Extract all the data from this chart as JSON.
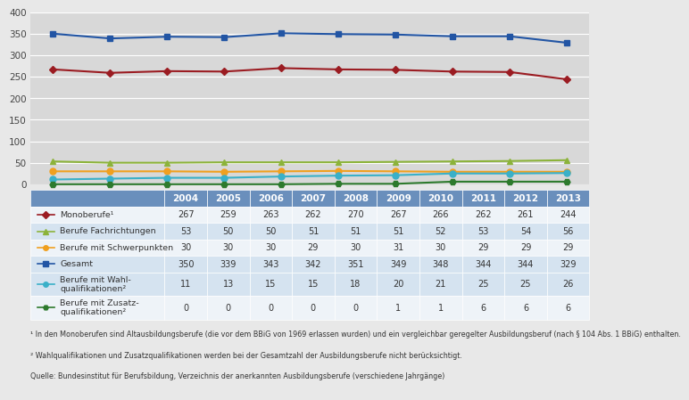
{
  "years": [
    2004,
    2005,
    2006,
    2007,
    2008,
    2009,
    2010,
    2011,
    2012,
    2013
  ],
  "series": [
    {
      "label": "Monoberufe¹",
      "label_short": "Monoberufe¹",
      "values": [
        267,
        259,
        263,
        262,
        270,
        267,
        266,
        262,
        261,
        244
      ],
      "color": "#9b1c22",
      "marker": "D",
      "markersize": 4,
      "linewidth": 1.5
    },
    {
      "label": "Berufe Fachrichtungen",
      "label_short": "Berufe Fachrichtungen",
      "values": [
        53,
        50,
        50,
        51,
        51,
        51,
        52,
        53,
        54,
        56
      ],
      "color": "#8cb33a",
      "marker": "^",
      "markersize": 5,
      "linewidth": 1.5
    },
    {
      "label": "Berufe mit Schwerpunkten",
      "label_short": "Berufe mit Schwerpunkten",
      "values": [
        30,
        30,
        30,
        29,
        30,
        31,
        30,
        29,
        29,
        29
      ],
      "color": "#f0a020",
      "marker": "o",
      "markersize": 5,
      "linewidth": 1.5
    },
    {
      "label": "Gesamt",
      "label_short": "Gesamt",
      "values": [
        350,
        339,
        343,
        342,
        351,
        349,
        348,
        344,
        344,
        329
      ],
      "color": "#2255a4",
      "marker": "s",
      "markersize": 5,
      "linewidth": 1.5
    },
    {
      "label": "Berufe mit Wahlqualifikationen²",
      "label_short": "Berufe mit Wahl-\nqualifikationen²",
      "values": [
        11,
        13,
        15,
        15,
        18,
        20,
        21,
        25,
        25,
        26
      ],
      "color": "#3ab0c8",
      "marker": "o",
      "markersize": 5,
      "linewidth": 1.5
    },
    {
      "label": "Berufe mit Zusatzqualifikationen²",
      "label_short": "Berufe mit Zusatz-\nqualifikationen²",
      "values": [
        0,
        0,
        0,
        0,
        0,
        1,
        1,
        6,
        6,
        6
      ],
      "color": "#2d7a2d",
      "marker": "H",
      "markersize": 5,
      "linewidth": 1.5
    }
  ],
  "ylim": [
    0,
    400
  ],
  "yticks": [
    0,
    50,
    100,
    150,
    200,
    250,
    300,
    350,
    400
  ],
  "chart_bg": "#d8d8d8",
  "outer_bg": "#e8e8e8",
  "table_header_bg": "#6a8fbc",
  "table_row_odd": "#d5e3f0",
  "table_row_even": "#eef3f8",
  "table_text_color": "#333333",
  "grid_color": "#ffffff",
  "footnote1": "¹ In den Monoberufen sind Altausbildungsberufe (die vor dem BBiG von 1969 erlassen wurden) und ein vergleichbar geregelter Ausbildungsberuf (nach § 104 Abs. 1 BBiG) enthalten.",
  "footnote2": "² Wahlqualifikationen und Zusatzqualifikationen werden bei der Gesamtzahl der Ausbildungsberufe nicht berücksichtigt.",
  "source": "Quelle: Bundesinstitut für Berufsbildung, Verzeichnis der anerkannten Ausbildungsberufe (verschiedene Jahrgänge)"
}
